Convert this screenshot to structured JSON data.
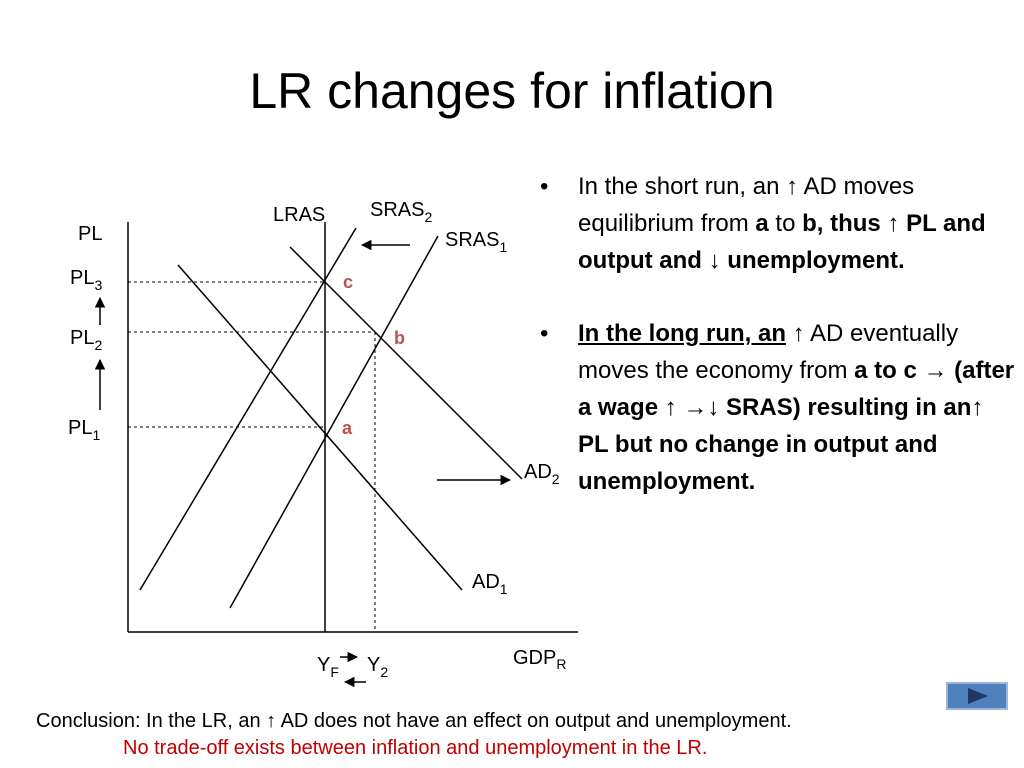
{
  "title": "LR changes for inflation",
  "graph": {
    "y_axis_label": "PL",
    "x_axis_label": {
      "text": "GDP",
      "sub": "R"
    },
    "lras_label": "LRAS",
    "sras2_label": {
      "text": "SRAS",
      "sub": "2"
    },
    "sras1_label": {
      "text": "SRAS",
      "sub": "1"
    },
    "ad2_label": {
      "text": "AD",
      "sub": "2"
    },
    "ad1_label": {
      "text": "AD",
      "sub": "1"
    },
    "pl3_label": {
      "text": "PL",
      "sub": "3"
    },
    "pl2_label": {
      "text": "PL",
      "sub": "2"
    },
    "pl1_label": {
      "text": "PL",
      "sub": "1"
    },
    "yf_label": {
      "text": "Y",
      "sub": "F"
    },
    "y2_label": {
      "text": "Y",
      "sub": "2"
    },
    "point_a": "a",
    "point_b": "b",
    "point_c": "c"
  },
  "bullets": [
    [
      {
        "text": "In the short run, an ↑ AD moves equilibrium from ",
        "bold": false,
        "underline": false
      },
      {
        "text": "a",
        "bold": true,
        "underline": false
      },
      {
        "text": " to ",
        "bold": false,
        "underline": false
      },
      {
        "text": "b, thus ↑ PL and output and ↓ unemployment.",
        "bold": true,
        "underline": false
      }
    ],
    [
      {
        "text": "In the long run, an",
        "bold": true,
        "underline": true
      },
      {
        "text": " ↑ AD eventually moves the economy from ",
        "bold": false,
        "underline": false
      },
      {
        "text": "a to c → (after a wage ↑ →↓ SRAS) resulting in an↑ PL but no change in output and unemployment.",
        "bold": true,
        "underline": false
      }
    ]
  ],
  "conclusion": "Conclusion:  In the LR, an ↑ AD does not have an effect on output and unemployment.",
  "note": "No trade-off exists between inflation and unemployment in the LR."
}
